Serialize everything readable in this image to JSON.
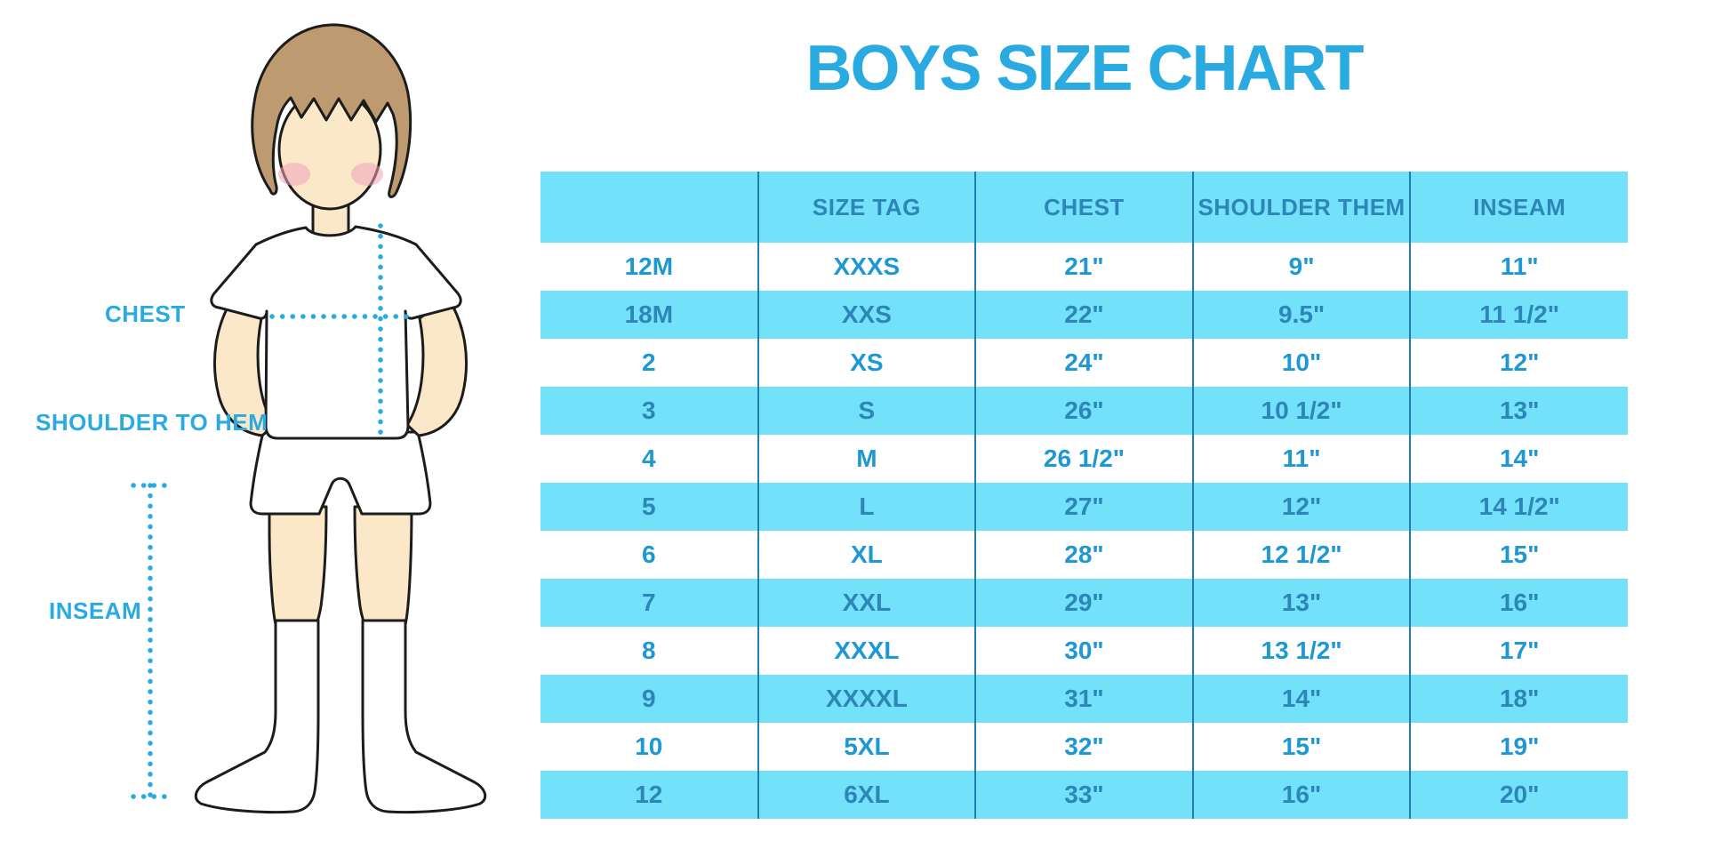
{
  "page": {
    "title": "BOYS SIZE CHART"
  },
  "figure": {
    "description": "boy-front-white-tshirt-shorts-knee-socks",
    "labels": {
      "chest": "CHEST",
      "shoulder_to_hem": "SHOULDER TO HEM",
      "inseam": "INSEAM"
    }
  },
  "chart_data": {
    "type": "table",
    "title": "BOYS SIZE CHART",
    "columns": [
      "",
      "SIZE TAG",
      "CHEST",
      "SHOULDER THEM",
      "INSEAM"
    ],
    "rows": [
      [
        "12M",
        "XXXS",
        "21\"",
        "9\"",
        "11\""
      ],
      [
        "18M",
        "XXS",
        "22\"",
        "9.5\"",
        "11 1/2\""
      ],
      [
        "2",
        "XS",
        "24\"",
        "10\"",
        "12\""
      ],
      [
        "3",
        "S",
        "26\"",
        "10 1/2\"",
        "13\""
      ],
      [
        "4",
        "M",
        "26 1/2\"",
        "11\"",
        "14\""
      ],
      [
        "5",
        "L",
        "27\"",
        "12\"",
        "14 1/2\""
      ],
      [
        "6",
        "XL",
        "28\"",
        "12 1/2\"",
        "15\""
      ],
      [
        "7",
        "XXL",
        "29\"",
        "13\"",
        "16\""
      ],
      [
        "8",
        "XXXL",
        "30\"",
        "13 1/2\"",
        "17\""
      ],
      [
        "9",
        "XXXXL",
        "31\"",
        "14\"",
        "18\""
      ],
      [
        "10",
        "5XL",
        "32\"",
        "15\"",
        "19\""
      ],
      [
        "12",
        "6XL",
        "33\"",
        "16\"",
        "20\""
      ]
    ],
    "layout": {
      "striped": true,
      "stripe_colors": [
        "#FFFFFF",
        "#73E1FA"
      ],
      "header_bg": "#73E1FA",
      "grid": "vertical-dividers-only",
      "legend": "none"
    }
  },
  "colors": {
    "accent_blue": "#29ABE2",
    "row_cyan": "#73E1FA",
    "text_on_white": "#1D98D5",
    "text_on_cyan": "#2C86B8",
    "divider_blue": "#1F7EAE",
    "skin": "#FBE8C9",
    "hair": "#BD9A6F",
    "blush": "#EFA3B8",
    "outline": "#1C1C1C"
  }
}
